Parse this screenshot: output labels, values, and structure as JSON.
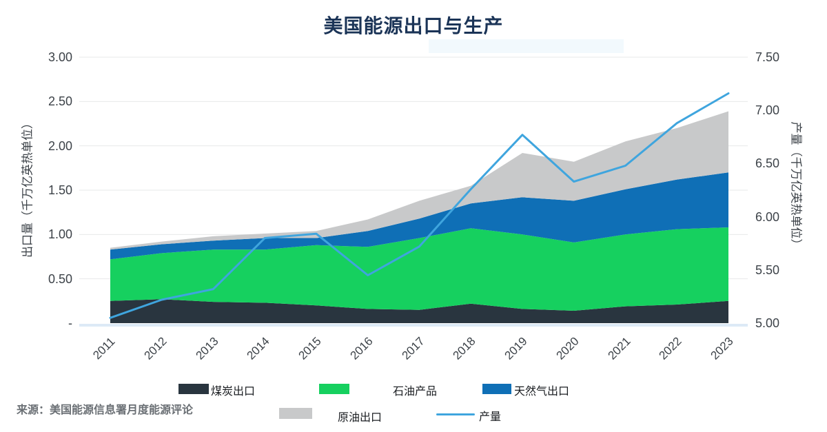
{
  "chart_data": {
    "type": "area",
    "subtype": "stacked-area-with-line",
    "title": "美国能源出口与生产",
    "x": [
      2011,
      2012,
      2013,
      2014,
      2015,
      2016,
      2017,
      2018,
      2019,
      2020,
      2021,
      2022,
      2023
    ],
    "stacked_area_series": [
      {
        "name": "煤炭出口",
        "color": "#29353F",
        "values": [
          0.25,
          0.27,
          0.24,
          0.23,
          0.2,
          0.16,
          0.15,
          0.22,
          0.16,
          0.14,
          0.19,
          0.21,
          0.25
        ]
      },
      {
        "name": "石油产品",
        "color": "#16D05F",
        "values": [
          0.47,
          0.52,
          0.59,
          0.6,
          0.68,
          0.7,
          0.81,
          0.85,
          0.84,
          0.77,
          0.81,
          0.85,
          0.83
        ]
      },
      {
        "name": "天然气出口",
        "color": "#0F6FB6",
        "values": [
          0.11,
          0.1,
          0.1,
          0.13,
          0.08,
          0.18,
          0.22,
          0.28,
          0.42,
          0.47,
          0.51,
          0.56,
          0.62
        ]
      },
      {
        "name": "原油出口",
        "color": "#C8C9CA",
        "values": [
          0.02,
          0.03,
          0.05,
          0.05,
          0.08,
          0.13,
          0.2,
          0.2,
          0.5,
          0.44,
          0.54,
          0.58,
          0.69
        ]
      }
    ],
    "line_series": {
      "name": "产量",
      "color": "#3FA5DE",
      "axis": "right",
      "values": [
        5.05,
        5.22,
        5.32,
        5.8,
        5.84,
        5.45,
        5.72,
        6.26,
        6.77,
        6.33,
        6.48,
        6.88,
        7.16
      ]
    },
    "y_left": {
      "label": "出口量（千万亿英热单位）",
      "min": 0,
      "max": 3,
      "tick_values": [
        3.0,
        2.5,
        2.0,
        1.5,
        1.0,
        0.5,
        0
      ],
      "tick_labels": [
        "3.00",
        "2.50",
        "2.00",
        "1.50",
        "1.00",
        "0.50",
        "-"
      ]
    },
    "y_right": {
      "label": "产量（千万亿英热单位）",
      "min": 5,
      "max": 7.5,
      "tick_values": [
        7.5,
        7.0,
        6.5,
        6.0,
        5.5,
        5.0
      ],
      "tick_labels": [
        "7.50",
        "7.00",
        "6.50",
        "6.00",
        "5.50",
        "5.00"
      ]
    },
    "grid": true,
    "legend_position": "bottom"
  },
  "legend": {
    "items": [
      "煤炭出口",
      "石油产品",
      "天然气出口",
      "原油出口",
      "产量"
    ]
  },
  "source_note": "来源：美国能源信息署月度能源评论",
  "colors": {
    "title": "#1B3457",
    "gridline": "#E7E8EA",
    "baseline": "#DDEAF6",
    "tick_text": "#3C4248"
  }
}
